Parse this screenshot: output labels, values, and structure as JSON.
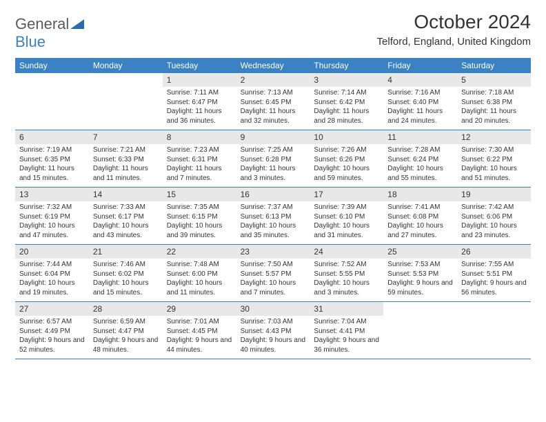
{
  "logo": {
    "word1": "General",
    "word2": "Blue",
    "icon_color": "#2b6cb0"
  },
  "title": "October 2024",
  "location": "Telford, England, United Kingdom",
  "colors": {
    "header_bg": "#3b82c4",
    "header_text": "#ffffff",
    "daynum_bg": "#e8e8e8",
    "text": "#333333",
    "row_border": "#3b82c4"
  },
  "dow": [
    "Sunday",
    "Monday",
    "Tuesday",
    "Wednesday",
    "Thursday",
    "Friday",
    "Saturday"
  ],
  "weeks": [
    [
      null,
      null,
      {
        "n": "1",
        "sunrise": "7:11 AM",
        "sunset": "6:47 PM",
        "daylight": "11 hours and 36 minutes."
      },
      {
        "n": "2",
        "sunrise": "7:13 AM",
        "sunset": "6:45 PM",
        "daylight": "11 hours and 32 minutes."
      },
      {
        "n": "3",
        "sunrise": "7:14 AM",
        "sunset": "6:42 PM",
        "daylight": "11 hours and 28 minutes."
      },
      {
        "n": "4",
        "sunrise": "7:16 AM",
        "sunset": "6:40 PM",
        "daylight": "11 hours and 24 minutes."
      },
      {
        "n": "5",
        "sunrise": "7:18 AM",
        "sunset": "6:38 PM",
        "daylight": "11 hours and 20 minutes."
      }
    ],
    [
      {
        "n": "6",
        "sunrise": "7:19 AM",
        "sunset": "6:35 PM",
        "daylight": "11 hours and 15 minutes."
      },
      {
        "n": "7",
        "sunrise": "7:21 AM",
        "sunset": "6:33 PM",
        "daylight": "11 hours and 11 minutes."
      },
      {
        "n": "8",
        "sunrise": "7:23 AM",
        "sunset": "6:31 PM",
        "daylight": "11 hours and 7 minutes."
      },
      {
        "n": "9",
        "sunrise": "7:25 AM",
        "sunset": "6:28 PM",
        "daylight": "11 hours and 3 minutes."
      },
      {
        "n": "10",
        "sunrise": "7:26 AM",
        "sunset": "6:26 PM",
        "daylight": "10 hours and 59 minutes."
      },
      {
        "n": "11",
        "sunrise": "7:28 AM",
        "sunset": "6:24 PM",
        "daylight": "10 hours and 55 minutes."
      },
      {
        "n": "12",
        "sunrise": "7:30 AM",
        "sunset": "6:22 PM",
        "daylight": "10 hours and 51 minutes."
      }
    ],
    [
      {
        "n": "13",
        "sunrise": "7:32 AM",
        "sunset": "6:19 PM",
        "daylight": "10 hours and 47 minutes."
      },
      {
        "n": "14",
        "sunrise": "7:33 AM",
        "sunset": "6:17 PM",
        "daylight": "10 hours and 43 minutes."
      },
      {
        "n": "15",
        "sunrise": "7:35 AM",
        "sunset": "6:15 PM",
        "daylight": "10 hours and 39 minutes."
      },
      {
        "n": "16",
        "sunrise": "7:37 AM",
        "sunset": "6:13 PM",
        "daylight": "10 hours and 35 minutes."
      },
      {
        "n": "17",
        "sunrise": "7:39 AM",
        "sunset": "6:10 PM",
        "daylight": "10 hours and 31 minutes."
      },
      {
        "n": "18",
        "sunrise": "7:41 AM",
        "sunset": "6:08 PM",
        "daylight": "10 hours and 27 minutes."
      },
      {
        "n": "19",
        "sunrise": "7:42 AM",
        "sunset": "6:06 PM",
        "daylight": "10 hours and 23 minutes."
      }
    ],
    [
      {
        "n": "20",
        "sunrise": "7:44 AM",
        "sunset": "6:04 PM",
        "daylight": "10 hours and 19 minutes."
      },
      {
        "n": "21",
        "sunrise": "7:46 AM",
        "sunset": "6:02 PM",
        "daylight": "10 hours and 15 minutes."
      },
      {
        "n": "22",
        "sunrise": "7:48 AM",
        "sunset": "6:00 PM",
        "daylight": "10 hours and 11 minutes."
      },
      {
        "n": "23",
        "sunrise": "7:50 AM",
        "sunset": "5:57 PM",
        "daylight": "10 hours and 7 minutes."
      },
      {
        "n": "24",
        "sunrise": "7:52 AM",
        "sunset": "5:55 PM",
        "daylight": "10 hours and 3 minutes."
      },
      {
        "n": "25",
        "sunrise": "7:53 AM",
        "sunset": "5:53 PM",
        "daylight": "9 hours and 59 minutes."
      },
      {
        "n": "26",
        "sunrise": "7:55 AM",
        "sunset": "5:51 PM",
        "daylight": "9 hours and 56 minutes."
      }
    ],
    [
      {
        "n": "27",
        "sunrise": "6:57 AM",
        "sunset": "4:49 PM",
        "daylight": "9 hours and 52 minutes."
      },
      {
        "n": "28",
        "sunrise": "6:59 AM",
        "sunset": "4:47 PM",
        "daylight": "9 hours and 48 minutes."
      },
      {
        "n": "29",
        "sunrise": "7:01 AM",
        "sunset": "4:45 PM",
        "daylight": "9 hours and 44 minutes."
      },
      {
        "n": "30",
        "sunrise": "7:03 AM",
        "sunset": "4:43 PM",
        "daylight": "9 hours and 40 minutes."
      },
      {
        "n": "31",
        "sunrise": "7:04 AM",
        "sunset": "4:41 PM",
        "daylight": "9 hours and 36 minutes."
      },
      null,
      null
    ]
  ],
  "labels": {
    "sunrise": "Sunrise:",
    "sunset": "Sunset:",
    "daylight": "Daylight:"
  }
}
